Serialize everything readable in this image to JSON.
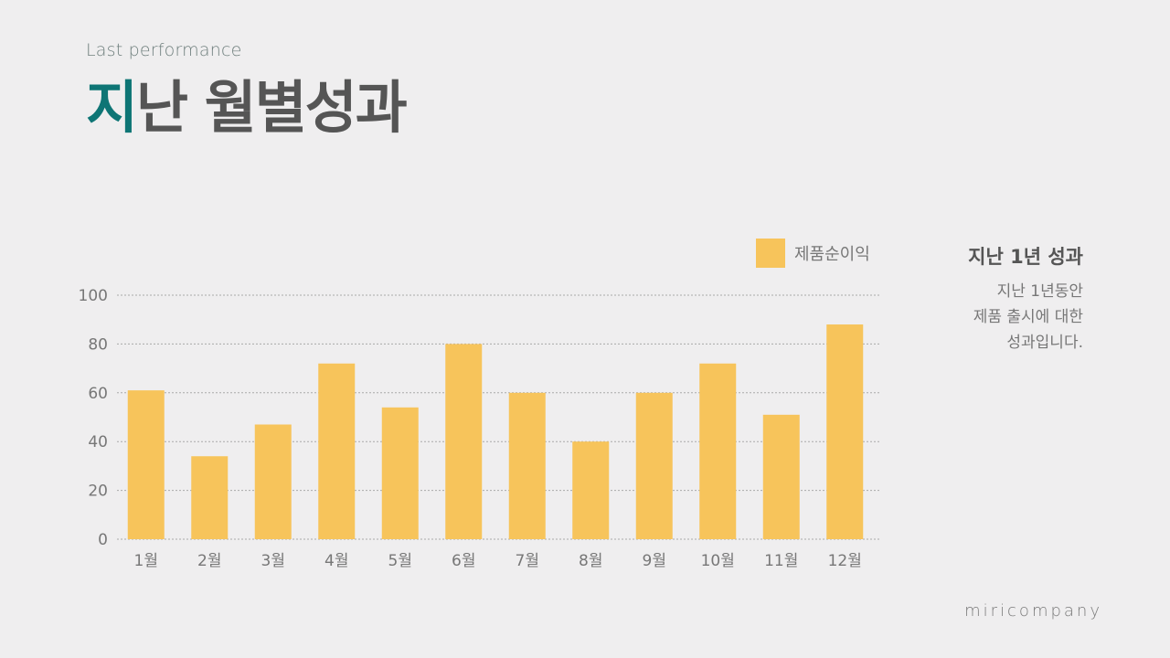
{
  "header": {
    "subtitle": "Last performance",
    "title_accent": "지",
    "title_rest": "난 월별성과"
  },
  "side": {
    "heading": "지난 1년 성과",
    "lines": [
      "지난 1년동안",
      "제품 출시에 대한",
      "성과입니다."
    ]
  },
  "brand": "miricompany",
  "colors": {
    "bar": "#f7c45b",
    "accent": "#0e7575",
    "title": "#555555",
    "grid": "#a9a9a9"
  },
  "chart_data": {
    "type": "bar",
    "categories": [
      "1월",
      "2월",
      "3월",
      "4월",
      "5월",
      "6월",
      "7월",
      "8월",
      "9월",
      "10월",
      "11월",
      "12월"
    ],
    "series": [
      {
        "name": "제품순이익",
        "values": [
          61,
          34,
          47,
          72,
          54,
          80,
          60,
          40,
          60,
          72,
          51,
          88
        ]
      }
    ],
    "yticks": [
      "0",
      "20",
      "40",
      "60",
      "80",
      "100"
    ],
    "ylim": [
      0,
      100
    ],
    "grid": true,
    "legend": "top-right",
    "title": "",
    "xlabel": "",
    "ylabel": ""
  }
}
